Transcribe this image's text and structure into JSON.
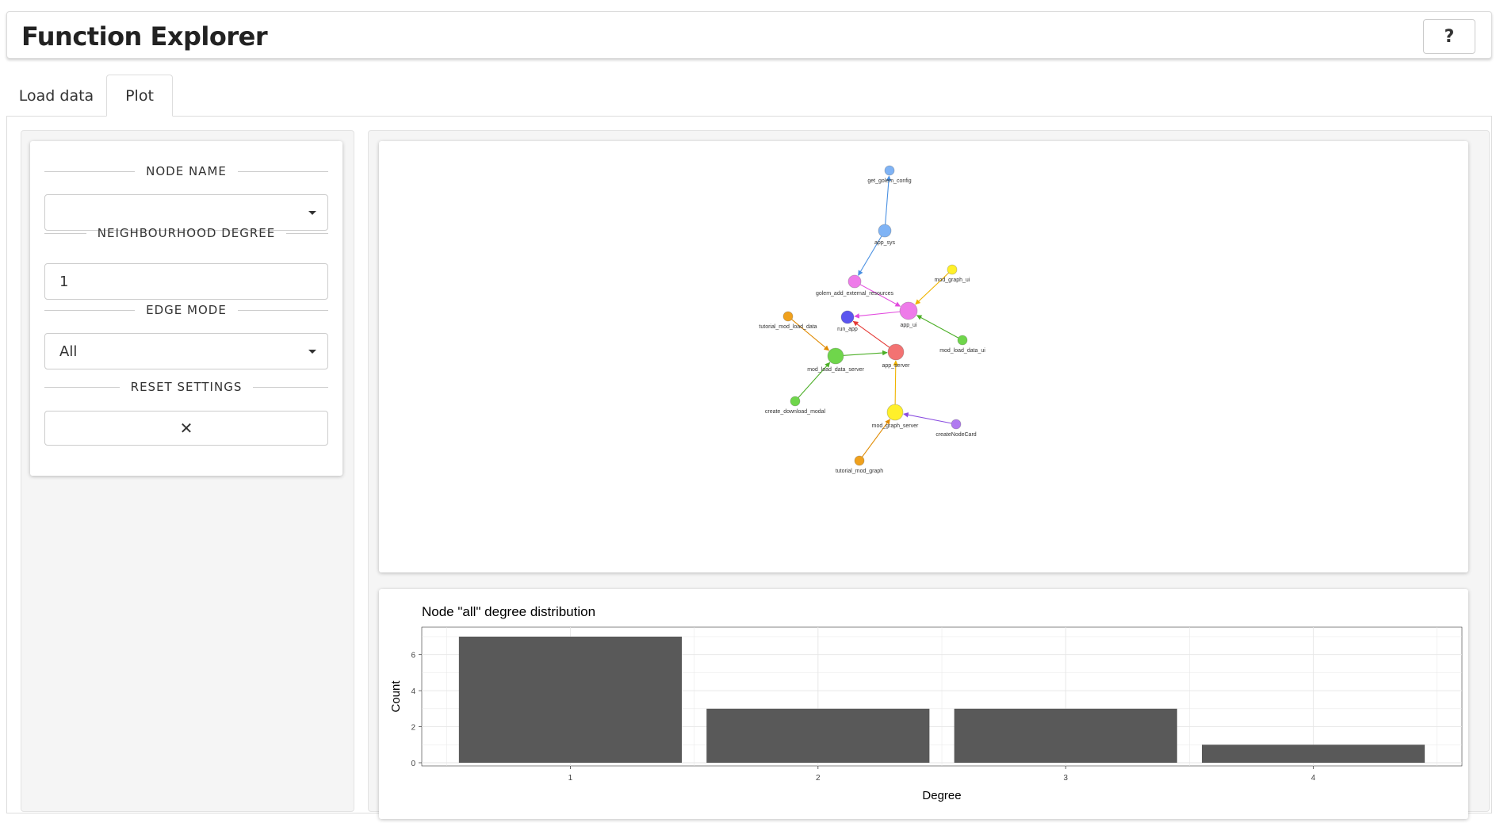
{
  "app": {
    "title": "Function Explorer",
    "help_label": "?"
  },
  "tabs": [
    {
      "label": "Load data",
      "active": false
    },
    {
      "label": "Plot",
      "active": true
    }
  ],
  "controls": {
    "node_name": {
      "heading": "NODE NAME",
      "value": ""
    },
    "neighbourhood_degree": {
      "heading": "NEIGHBOURHOOD DEGREE",
      "value": "1"
    },
    "edge_mode": {
      "heading": "EDGE MODE",
      "value": "All"
    },
    "reset": {
      "heading": "RESET SETTINGS",
      "icon": "close-icon",
      "glyph": "✕"
    }
  },
  "graph": {
    "nodes": [
      {
        "id": "get_golem_config",
        "label": "get_golem_config",
        "color": "#7fb3f5"
      },
      {
        "id": "app_sys",
        "label": "app_sys",
        "color": "#7fb3f5"
      },
      {
        "id": "golem_add_external_resources",
        "label": "golem_add_external_resources",
        "color": "#ee7be9"
      },
      {
        "id": "mod_graph_ui",
        "label": "mod_graph_ui",
        "color": "#fff02a"
      },
      {
        "id": "app_ui",
        "label": "app_ui",
        "color": "#ee7be9"
      },
      {
        "id": "run_app",
        "label": "run_app",
        "color": "#5b55ef"
      },
      {
        "id": "tutorial_mod_load_data",
        "label": "tutorial_mod_load_data",
        "color": "#f0a11d"
      },
      {
        "id": "mod_load_data_ui",
        "label": "mod_load_data_ui",
        "color": "#6fd64b"
      },
      {
        "id": "mod_load_data_server",
        "label": "mod_load_data_server",
        "color": "#6fd64b"
      },
      {
        "id": "app_server",
        "label": "app_server",
        "color": "#f37272"
      },
      {
        "id": "create_download_modal",
        "label": "create_download_modal",
        "color": "#6fd64b"
      },
      {
        "id": "mod_graph_server",
        "label": "mod_graph_server",
        "color": "#fff02a"
      },
      {
        "id": "createNodeCard",
        "label": "createNodeCard",
        "color": "#b07af0"
      },
      {
        "id": "tutorial_mod_graph",
        "label": "tutorial_mod_graph",
        "color": "#f0a11d"
      }
    ],
    "edges": [
      {
        "from": "app_sys",
        "to": "get_golem_config",
        "color": "#4a90e2"
      },
      {
        "from": "app_sys",
        "to": "golem_add_external_resources",
        "color": "#4a90e2"
      },
      {
        "from": "golem_add_external_resources",
        "to": "app_ui",
        "color": "#e24ade"
      },
      {
        "from": "mod_graph_ui",
        "to": "app_ui",
        "color": "#f0b400"
      },
      {
        "from": "app_ui",
        "to": "run_app",
        "color": "#e24ade"
      },
      {
        "from": "mod_load_data_ui",
        "to": "app_ui",
        "color": "#4caf27"
      },
      {
        "from": "app_server",
        "to": "run_app",
        "color": "#e53935"
      },
      {
        "from": "tutorial_mod_load_data",
        "to": "mod_load_data_server",
        "color": "#e08a00"
      },
      {
        "from": "mod_load_data_server",
        "to": "app_server",
        "color": "#4caf27"
      },
      {
        "from": "create_download_modal",
        "to": "mod_load_data_server",
        "color": "#4caf27"
      },
      {
        "from": "mod_graph_server",
        "to": "app_server",
        "color": "#f0b400"
      },
      {
        "from": "createNodeCard",
        "to": "mod_graph_server",
        "color": "#8a4de0"
      },
      {
        "from": "tutorial_mod_graph",
        "to": "mod_graph_server",
        "color": "#e08a00"
      }
    ]
  },
  "chart_data": {
    "type": "bar",
    "title": "Node \"all\" degree distribution",
    "xlabel": "Degree",
    "ylabel": "Count",
    "categories": [
      "1",
      "2",
      "3",
      "4"
    ],
    "values": [
      7,
      3,
      3,
      1
    ],
    "ylim": [
      0,
      7.35
    ],
    "yticks": [
      "0",
      "2",
      "4",
      "6"
    ],
    "bar_color": "#595959",
    "grid": true
  }
}
